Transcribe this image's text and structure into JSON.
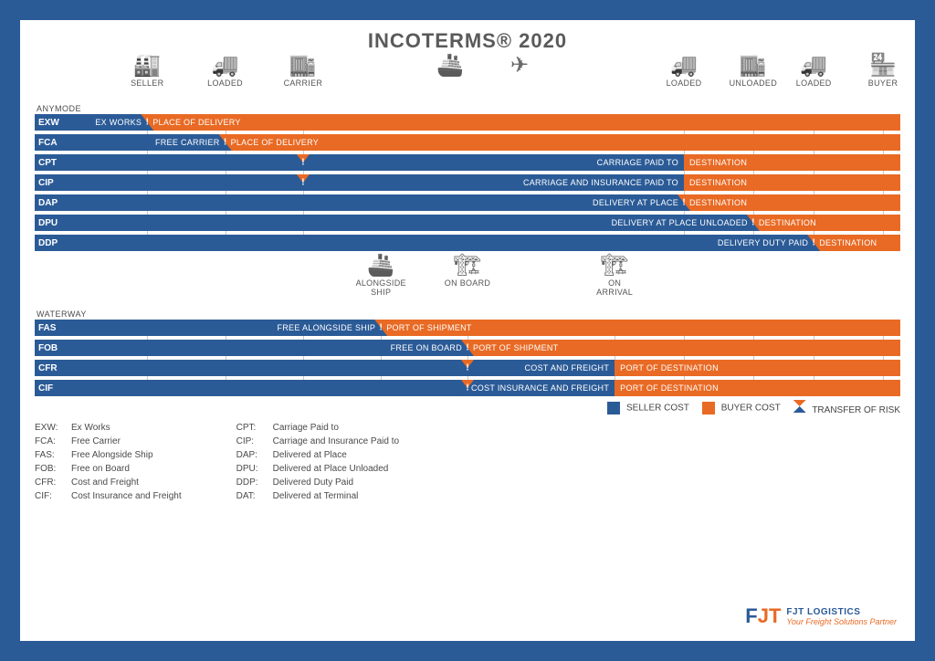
{
  "title": "INCOTERMS® 2020",
  "colors": {
    "seller": "#2b5b97",
    "buyer": "#e96a24",
    "pageBg": "#2b5b97",
    "grid": "#c9c9c9",
    "text": "#4a4a4a"
  },
  "layout": {
    "codeColWidthPx": 42,
    "trackLeftPx": 42
  },
  "topIcons": [
    {
      "name": "seller-icon",
      "glyph": "🏭",
      "label": "SELLER",
      "x": 13
    },
    {
      "name": "loaded-1-icon",
      "glyph": "🚚",
      "label": "LOADED",
      "x": 22
    },
    {
      "name": "carrier-icon",
      "glyph": "🏬",
      "label": "CARRIER",
      "x": 31
    },
    {
      "name": "ship-icon",
      "glyph": "🚢",
      "label": "",
      "x": 48
    },
    {
      "name": "plane-icon",
      "glyph": "✈",
      "label": "",
      "x": 56
    },
    {
      "name": "loaded-2-icon",
      "glyph": "🚚",
      "label": "LOADED",
      "x": 75
    },
    {
      "name": "unloaded-icon",
      "glyph": "🏬",
      "label": "UNLOADED",
      "x": 83
    },
    {
      "name": "loaded-3-icon",
      "glyph": "🚚",
      "label": "LOADED",
      "x": 90
    },
    {
      "name": "buyer-icon",
      "glyph": "🏪",
      "label": "BUYER",
      "x": 98
    }
  ],
  "midIcons": [
    {
      "name": "alongside-icon",
      "glyph": "🚢",
      "label": "ALONGSIDE SHIP",
      "x": 40
    },
    {
      "name": "onboard-icon",
      "glyph": "🏗",
      "label": "ON BOARD",
      "x": 50
    },
    {
      "name": "arrival-icon",
      "glyph": "🏗",
      "label": "ON ARRIVAL",
      "x": 67
    }
  ],
  "gridPositions": [
    13,
    22,
    31,
    75,
    83,
    90,
    98
  ],
  "midGridPositions": [
    40,
    50,
    67
  ],
  "sectionLabels": {
    "any": "ANYMODE",
    "water": "WATERWAY"
  },
  "anymode": [
    {
      "code": "EXW",
      "split": 13,
      "risk": 13,
      "left": "EX WORKS",
      "right": "PLACE OF DELIVERY"
    },
    {
      "code": "FCA",
      "split": 22,
      "risk": 22,
      "left": "FREE CARRIER",
      "right": "PLACE OF DELIVERY"
    },
    {
      "code": "CPT",
      "split": 75,
      "risk": 31,
      "left": "CARRIAGE PAID TO",
      "right": "DESTINATION"
    },
    {
      "code": "CIP",
      "split": 75,
      "risk": 31,
      "left": "CARRIAGE AND INSURANCE PAID TO",
      "right": "DESTINATION"
    },
    {
      "code": "DAP",
      "split": 75,
      "risk": 75,
      "left": "DELIVERY AT PLACE",
      "right": "DESTINATION"
    },
    {
      "code": "DPU",
      "split": 83,
      "risk": 83,
      "left": "DELIVERY AT PLACE UNLOADED",
      "right": "DESTINATION"
    },
    {
      "code": "DDP",
      "split": 90,
      "risk": 90,
      "left": "DELIVERY DUTY PAID",
      "right": "DESTINATION"
    }
  ],
  "waterway": [
    {
      "code": "FAS",
      "split": 40,
      "risk": 40,
      "left": "FREE ALONGSIDE SHIP",
      "right": "PORT OF SHIPMENT"
    },
    {
      "code": "FOB",
      "split": 50,
      "risk": 50,
      "left": "FREE ON BOARD",
      "right": "PORT OF SHIPMENT"
    },
    {
      "code": "CFR",
      "split": 67,
      "risk": 50,
      "left": "COST AND FREIGHT",
      "right": "PORT OF DESTINATION"
    },
    {
      "code": "CIF",
      "split": 67,
      "risk": 50,
      "left": "COST INSURANCE AND FREIGHT",
      "right": "PORT OF DESTINATION"
    }
  ],
  "legend": {
    "seller": "SELLER COST",
    "buyer": "BUYER COST",
    "risk": "TRANSFER OF RISK"
  },
  "definitions": {
    "col1": [
      [
        "EXW:",
        "Ex Works"
      ],
      [
        "FCA:",
        "Free Carrier"
      ],
      [
        "FAS:",
        "Free Alongside Ship"
      ],
      [
        "FOB:",
        "Free on Board"
      ],
      [
        "CFR:",
        "Cost and Freight"
      ],
      [
        "CIF:",
        "Cost Insurance and Freight"
      ]
    ],
    "col2": [
      [
        "CPT:",
        "Carriage Paid to"
      ],
      [
        "CIP:",
        "Carriage and Insurance Paid to"
      ],
      [
        "DAP:",
        "Delivered at Place"
      ],
      [
        "DPU:",
        "Delivered at Place Unloaded"
      ],
      [
        "DDP:",
        "Delivered Duty Paid"
      ],
      [
        "DAT:",
        "Delivered at Terminal"
      ]
    ]
  },
  "brand": {
    "logoF": "F",
    "logoJT": "JT",
    "name": "FJT LOGISTICS",
    "sub": "Your Freight Solutions Partner"
  }
}
